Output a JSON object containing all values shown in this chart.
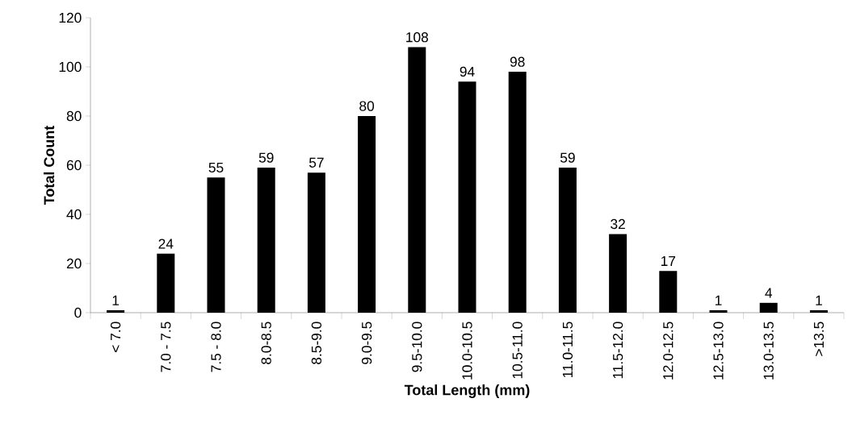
{
  "chart_data": {
    "type": "bar",
    "xlabel": "Total Length (mm)",
    "ylabel": "Total Count",
    "categories": [
      "< 7.0",
      "7.0 - 7.5",
      "7.5 - 8.0",
      "8.0-8.5",
      "8.5-9.0",
      "9.0-9.5",
      "9.5-10.0",
      "10.0-10.5",
      "10.5-11.0",
      "11.0-11.5",
      "11.5-12.0",
      "12.0-12.5",
      "12.5-13.0",
      "13.0-13.5",
      ">13.5"
    ],
    "values": [
      1,
      24,
      55,
      59,
      57,
      80,
      108,
      94,
      98,
      59,
      32,
      17,
      1,
      4,
      1
    ],
    "color": "#000000",
    "ylim": [
      0,
      120
    ],
    "yticks": [
      0,
      20,
      40,
      60,
      80,
      100,
      120
    ],
    "grid": false,
    "data_labels": true
  }
}
